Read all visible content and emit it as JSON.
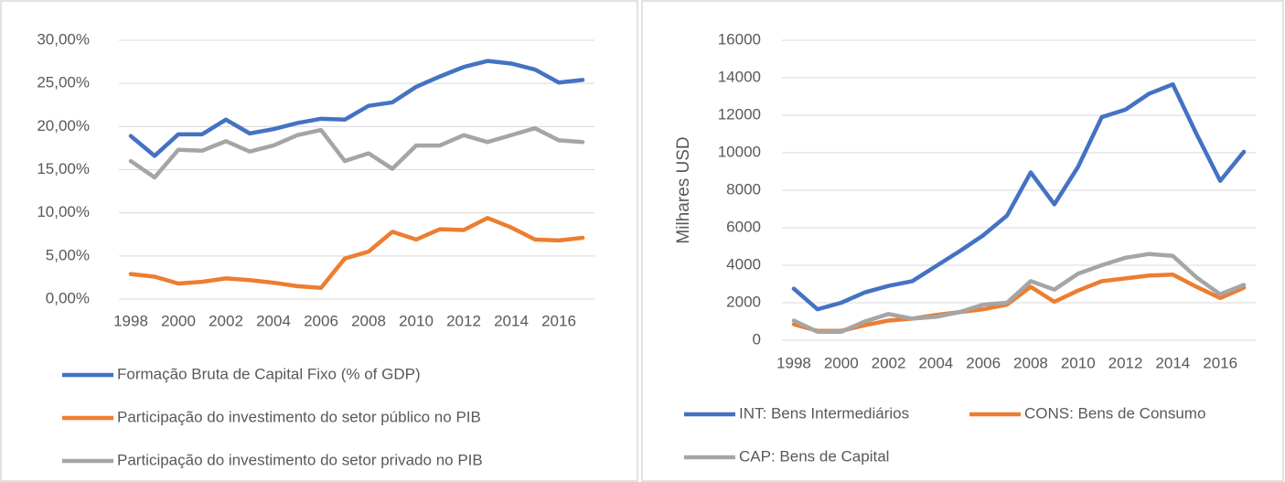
{
  "chart_data": [
    {
      "type": "line",
      "categories": [
        "1998",
        null,
        "2000",
        null,
        "2002",
        null,
        "2004",
        null,
        "2006",
        null,
        "2008",
        null,
        "2010",
        null,
        "2012",
        null,
        "2014",
        null,
        "2016",
        null
      ],
      "ylim": [
        0,
        30
      ],
      "yticks": [
        {
          "value": 0,
          "label": "0,00%"
        },
        {
          "value": 5,
          "label": "5,00%"
        },
        {
          "value": 10,
          "label": "10,00%"
        },
        {
          "value": 15,
          "label": "15,00%"
        },
        {
          "value": 20,
          "label": "20,00%"
        },
        {
          "value": 25,
          "label": "25,00%"
        },
        {
          "value": 30,
          "label": "30,00%"
        }
      ],
      "grid": true,
      "legend": "bottom",
      "series": [
        {
          "name": "Formação Bruta de Capital Fixo (% of GDP)",
          "color": "#4472c4",
          "values": [
            18.9,
            16.6,
            19.1,
            19.1,
            20.8,
            19.2,
            19.7,
            20.4,
            20.9,
            20.8,
            22.4,
            22.8,
            24.6,
            25.8,
            26.9,
            27.6,
            27.3,
            26.6,
            25.1,
            25.4
          ]
        },
        {
          "name": "Participação do investimento do setor público no PIB",
          "color": "#ed7d31",
          "values": [
            2.9,
            2.6,
            1.8,
            2.0,
            2.4,
            2.2,
            1.9,
            1.5,
            1.3,
            4.7,
            5.5,
            7.8,
            6.9,
            8.1,
            8.0,
            9.4,
            8.3,
            6.9,
            6.8,
            7.1
          ]
        },
        {
          "name": "Participação do investimento do setor privado no PIB",
          "color": "#a5a5a5",
          "values": [
            16.0,
            14.1,
            17.3,
            17.2,
            18.3,
            17.1,
            17.8,
            19.0,
            19.6,
            16.0,
            16.9,
            15.1,
            17.8,
            17.8,
            19.0,
            18.2,
            19.0,
            19.8,
            18.4,
            18.2
          ]
        }
      ]
    },
    {
      "type": "line",
      "y_label": "Milhares USD",
      "categories": [
        "1998",
        null,
        "2000",
        null,
        "2002",
        null,
        "2004",
        null,
        "2006",
        null,
        "2008",
        null,
        "2010",
        null,
        "2012",
        null,
        "2014",
        null,
        "2016",
        null
      ],
      "ylim": [
        0,
        16000
      ],
      "yticks": [
        0,
        2000,
        4000,
        6000,
        8000,
        10000,
        12000,
        14000,
        16000
      ],
      "grid": true,
      "legend": "bottom",
      "series": [
        {
          "name": "INT: Bens Intermediários",
          "color": "#4472c4",
          "values": [
            2750,
            1650,
            2000,
            2550,
            2900,
            3150,
            3950,
            4750,
            5600,
            6650,
            8950,
            7250,
            9250,
            11900,
            12300,
            13150,
            13650,
            11000,
            8500,
            10050
          ]
        },
        {
          "name": "CONS: Bens de Consumo",
          "color": "#ed7d31",
          "values": [
            850,
            500,
            500,
            800,
            1050,
            1150,
            1350,
            1500,
            1650,
            1900,
            2850,
            2050,
            2650,
            3150,
            3300,
            3450,
            3500,
            2850,
            2250,
            2800
          ]
        },
        {
          "name": "CAP: Bens de Capital",
          "color": "#a5a5a5",
          "values": [
            1050,
            450,
            450,
            1000,
            1400,
            1150,
            1250,
            1500,
            1900,
            2000,
            3150,
            2700,
            3550,
            4000,
            4400,
            4600,
            4500,
            3350,
            2450,
            2950
          ]
        }
      ]
    }
  ]
}
